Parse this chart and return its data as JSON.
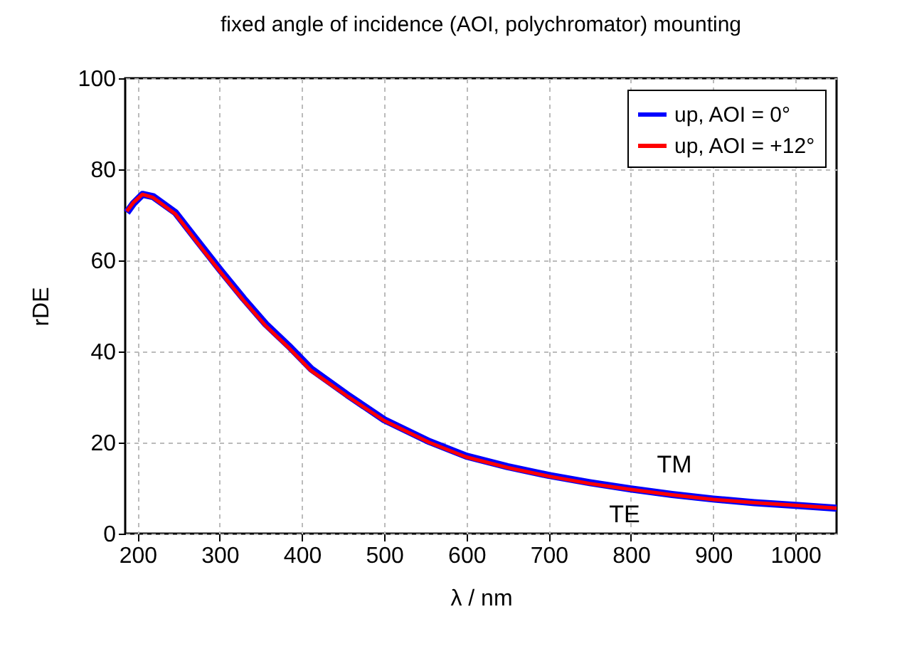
{
  "chart_data": {
    "type": "line",
    "title": "fixed angle of incidence (AOI, polychromator) mounting",
    "xlabel": "λ / nm",
    "ylabel": "rDE",
    "xlim": [
      185,
      1050
    ],
    "ylim": [
      0,
      100
    ],
    "xticks": [
      200,
      300,
      400,
      500,
      600,
      700,
      800,
      900,
      1000
    ],
    "yticks": [
      0,
      20,
      40,
      60,
      80,
      100
    ],
    "grid": true,
    "legend": "top right",
    "line_style": "solid",
    "marker": "none",
    "series": [
      {
        "name": "up, AOI = 0°",
        "color": "#0000ff",
        "x": [
          187,
          195,
          206,
          219,
          246,
          274,
          301,
          329,
          356,
          384,
          411,
          455,
          500,
          555,
          600,
          650,
          700,
          750,
          800,
          850,
          900,
          950,
          1000,
          1050
        ],
        "values": [
          70.5,
          72.5,
          74.5,
          74,
          70.5,
          64,
          57.8,
          51.6,
          46,
          41.2,
          36.2,
          30.5,
          25,
          20.2,
          17,
          14.7,
          12.8,
          11.2,
          9.8,
          8.6,
          7.6,
          6.8,
          6.2,
          5.6
        ]
      },
      {
        "name": "up, AOI = +12°",
        "color": "#ff0000",
        "x": [
          187,
          195,
          206,
          219,
          246,
          274,
          301,
          329,
          356,
          384,
          411,
          455,
          500,
          555,
          600,
          650,
          700,
          750,
          800,
          850,
          900,
          950,
          1000,
          1050
        ],
        "values": [
          70.8,
          72.7,
          74.5,
          73.8,
          70.2,
          63.6,
          57.4,
          51.2,
          45.6,
          40.8,
          35.8,
          30.2,
          24.8,
          20,
          16.8,
          14.5,
          12.6,
          11,
          9.7,
          8.5,
          7.5,
          6.8,
          6.2,
          5.6
        ]
      }
    ],
    "annotations": [
      "TM",
      "TE"
    ]
  }
}
